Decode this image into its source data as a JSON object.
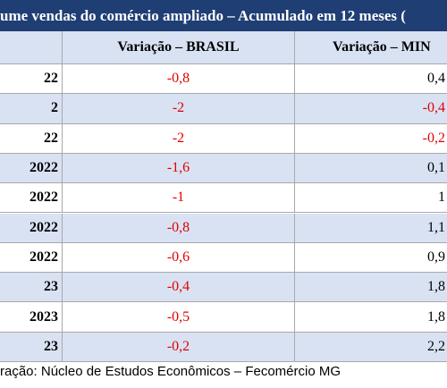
{
  "title": "ume vendas do comércio ampliado – Acumulado em 12 meses (",
  "table": {
    "header": [
      "Variação – BRASIL",
      "Variação – MIN"
    ],
    "rows": [
      [
        "22",
        "-0,8",
        "0,4"
      ],
      [
        "2",
        "-2",
        "-0,4"
      ],
      [
        "22",
        "-2",
        "-0,2"
      ],
      [
        "2022",
        "-1,6",
        "0,1"
      ],
      [
        "2022",
        "-1",
        "1"
      ],
      [
        "2022",
        "-0,8",
        "1,1"
      ],
      [
        "2022",
        "-0,6",
        "0,9"
      ],
      [
        "23",
        "-0,4",
        "1,8"
      ],
      [
        "2023",
        "-0,5",
        "1,8"
      ],
      [
        "23",
        "-0,2",
        "2,2"
      ]
    ]
  },
  "footer": "ração: Núcleo de Estudos Econômicos – Fecomércio MG"
}
